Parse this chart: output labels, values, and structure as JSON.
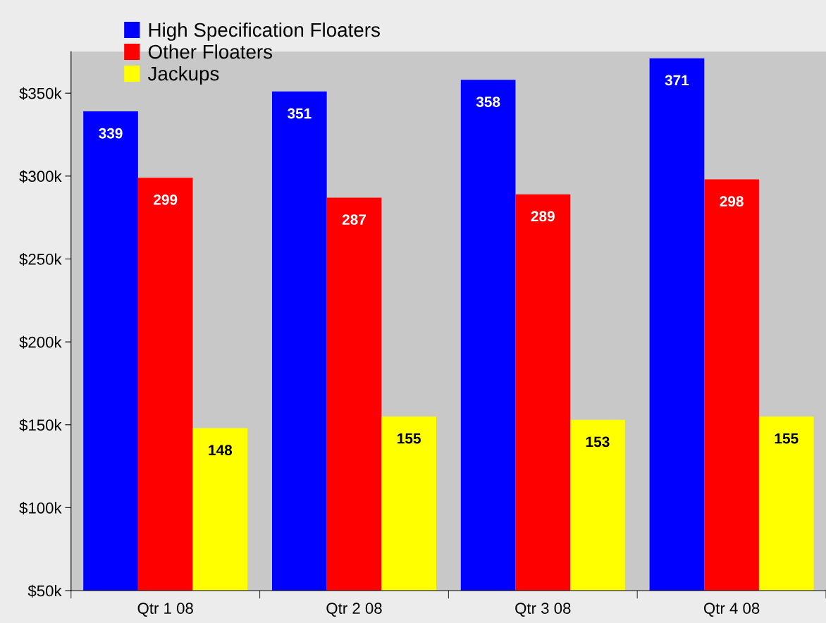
{
  "chart_data": {
    "type": "bar",
    "categories": [
      "Qtr 1 08",
      "Qtr 2 08",
      "Qtr 3 08",
      "Qtr 4 08"
    ],
    "series": [
      {
        "name": "High Specification Floaters",
        "color": "#0000ff",
        "values": [
          339,
          351,
          358,
          371
        ]
      },
      {
        "name": "Other Floaters",
        "color": "#ff0000",
        "values": [
          299,
          287,
          289,
          298
        ]
      },
      {
        "name": "Jackups",
        "color": "#ffff00",
        "values": [
          148,
          155,
          153,
          155
        ]
      }
    ],
    "ylim": [
      50,
      375
    ],
    "yticks": [
      {
        "value": 50,
        "label": "$50k"
      },
      {
        "value": 100,
        "label": "$100k"
      },
      {
        "value": 150,
        "label": "$150k"
      },
      {
        "value": 200,
        "label": "$200k"
      },
      {
        "value": 250,
        "label": "$250k"
      },
      {
        "value": 300,
        "label": "$300k"
      },
      {
        "value": 350,
        "label": "$350k"
      }
    ],
    "data_labels": true,
    "legend": "top left",
    "grid": false
  }
}
